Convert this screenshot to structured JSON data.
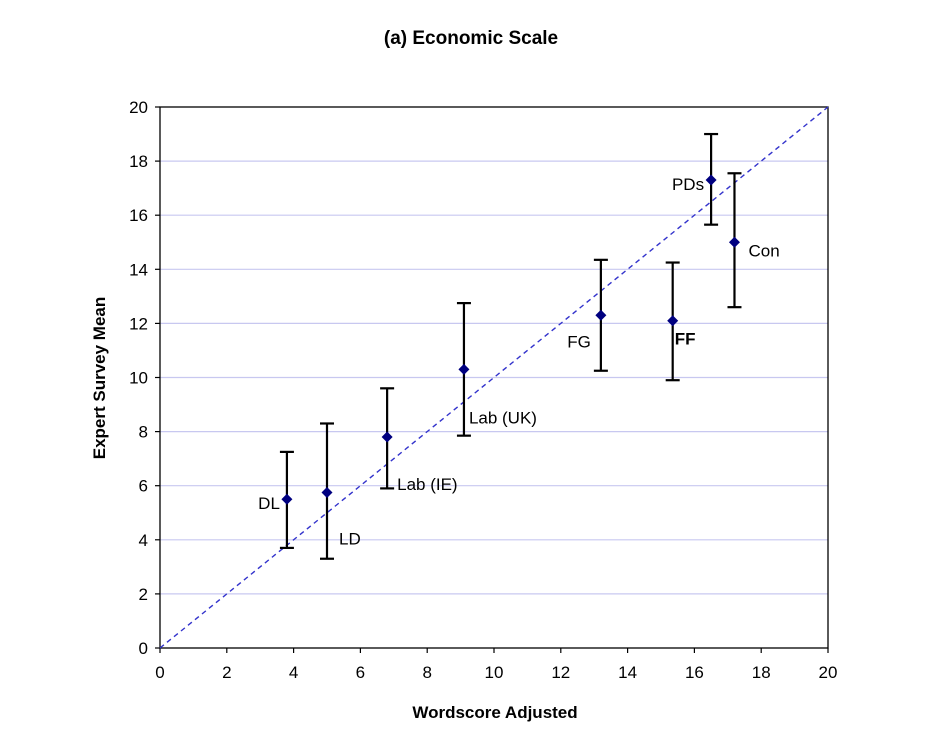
{
  "chart_data": {
    "type": "scatter",
    "title": "(a) Economic Scale",
    "xlabel": "Wordscore Adjusted",
    "ylabel": "Expert Survey Mean",
    "xlim": [
      0,
      20
    ],
    "ylim": [
      0,
      20
    ],
    "xticks": [
      0,
      2,
      4,
      6,
      8,
      10,
      12,
      14,
      16,
      18,
      20
    ],
    "yticks": [
      0,
      2,
      4,
      6,
      8,
      10,
      12,
      14,
      16,
      18,
      20
    ],
    "grid": "horizontal",
    "reference_line": {
      "style": "dashed",
      "from": [
        0,
        0
      ],
      "to": [
        20,
        20
      ]
    },
    "points": [
      {
        "label": "DL",
        "x": 3.8,
        "y": 5.5,
        "err_low": 3.7,
        "err_high": 7.25,
        "label_pos": "left",
        "bold": false
      },
      {
        "label": "LD",
        "x": 5.0,
        "y": 5.75,
        "err_low": 3.3,
        "err_high": 8.3,
        "label_pos": "below-right",
        "bold": false
      },
      {
        "label": "Lab (IE)",
        "x": 6.8,
        "y": 7.8,
        "err_low": 5.9,
        "err_high": 9.6,
        "label_pos": "below-right",
        "bold": false
      },
      {
        "label": "Lab (UK)",
        "x": 9.1,
        "y": 10.3,
        "err_low": 7.85,
        "err_high": 12.75,
        "label_pos": "below-right",
        "bold": false
      },
      {
        "label": "FG",
        "x": 13.2,
        "y": 12.3,
        "err_low": 10.25,
        "err_high": 14.35,
        "label_pos": "left",
        "bold": false
      },
      {
        "label": "FF",
        "x": 15.35,
        "y": 12.1,
        "err_low": 9.9,
        "err_high": 14.25,
        "label_pos": "below-right",
        "bold": true
      },
      {
        "label": "PDs",
        "x": 16.5,
        "y": 17.3,
        "err_low": 15.65,
        "err_high": 19.0,
        "label_pos": "left",
        "bold": false
      },
      {
        "label": "Con",
        "x": 17.2,
        "y": 15.0,
        "err_low": 12.6,
        "err_high": 17.55,
        "label_pos": "right",
        "bold": false
      }
    ],
    "colors": {
      "marker": "#000080",
      "reference_line": "#3333cc",
      "grid": "#c8c8f0",
      "error_bar": "#000000"
    }
  }
}
